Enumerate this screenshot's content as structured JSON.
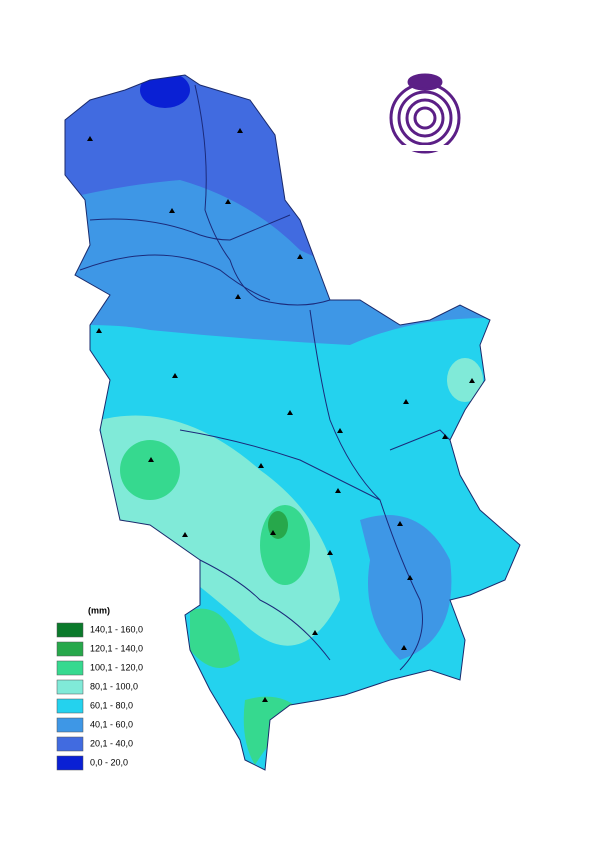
{
  "legend": {
    "unit": "(mm)",
    "classes": [
      {
        "label": "140,1 - 160,0",
        "color": "#0b7a2b"
      },
      {
        "label": "120,1 - 140,0",
        "color": "#27a84b"
      },
      {
        "label": "100,1 - 120,0",
        "color": "#36d98f"
      },
      {
        "label": "80,1 - 100,0",
        "color": "#80ead8"
      },
      {
        "label": "60,1 - 80,0",
        "color": "#24d2ee"
      },
      {
        "label": "40,1 - 60,0",
        "color": "#3e97e6"
      },
      {
        "label": "20,1 - 40,0",
        "color": "#416be0"
      },
      {
        "label": "0,0 - 20,0",
        "color": "#0a20d4"
      }
    ]
  }
}
